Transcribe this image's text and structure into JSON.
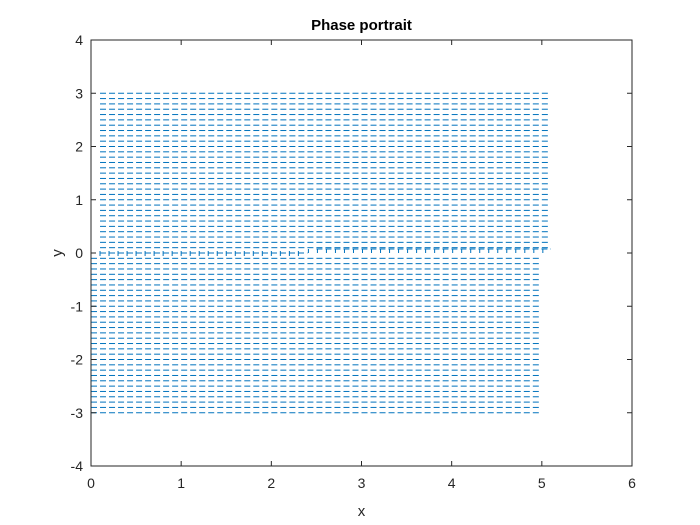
{
  "chart_data": {
    "type": "quiver",
    "title": "Phase portrait",
    "xlabel": "x",
    "ylabel": "y",
    "xlim": [
      0,
      6
    ],
    "ylim": [
      -4,
      4
    ],
    "xticks": [
      "0",
      "1",
      "2",
      "3",
      "4",
      "5",
      "6"
    ],
    "yticks": [
      "-4",
      "-3",
      "-2",
      "-1",
      "0",
      "1",
      "2",
      "3",
      "4"
    ],
    "grid": false,
    "box": true,
    "legend": "none",
    "colors": {
      "arrows": "#0072bd",
      "axes": "#262626",
      "background": "#ffffff"
    },
    "field": {
      "x": [
        0,
        5
      ],
      "x_step": 0.1,
      "y": [
        -3,
        3
      ],
      "y_step": 0.1,
      "dx": 1,
      "dy_rule": "dy = x * (y / |y|) pattern: upper half arrows point right from x≈0.1 to 5.1, lower half arrows point right from x≈0 to 5.0, y=0 row short ticks"
    }
  }
}
